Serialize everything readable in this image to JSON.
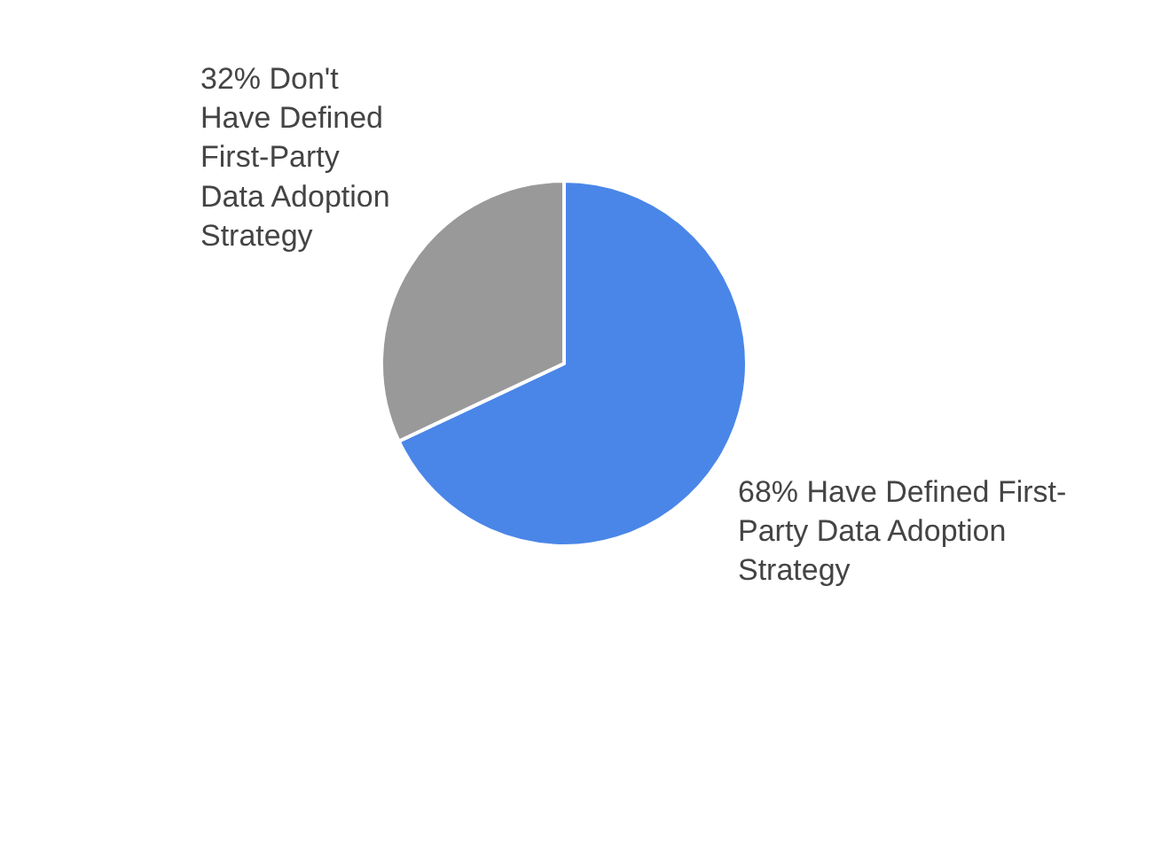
{
  "chart_data": {
    "type": "pie",
    "categories": [
      "68% Have Defined First-Party Data Adoption Strategy",
      "32% Don't Have Defined First-Party Data Adoption Strategy"
    ],
    "values": [
      68,
      32
    ],
    "colors": [
      "#4a86e8",
      "#999999"
    ]
  }
}
